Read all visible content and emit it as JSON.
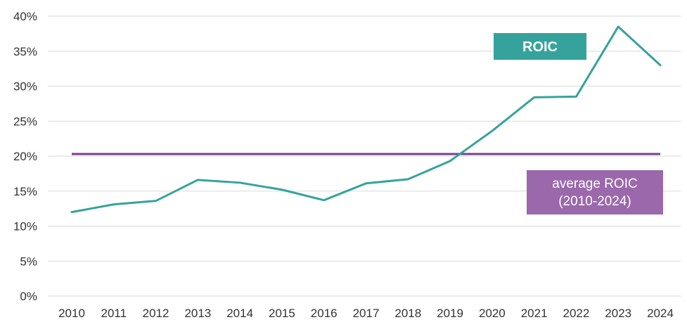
{
  "chart_data": {
    "type": "line",
    "title": "",
    "xlabel": "",
    "ylabel": "",
    "categories": [
      "2010",
      "2011",
      "2012",
      "2013",
      "2014",
      "2015",
      "2016",
      "2017",
      "2018",
      "2019",
      "2020",
      "2021",
      "2022",
      "2023",
      "2024"
    ],
    "series": [
      {
        "name": "ROIC",
        "color": "#35a39c",
        "values": [
          12.0,
          13.1,
          13.6,
          16.6,
          16.2,
          15.2,
          13.7,
          16.1,
          16.7,
          19.3,
          23.6,
          28.4,
          28.5,
          38.5,
          33.0
        ]
      },
      {
        "name": "average ROIC (2010-2024)",
        "label_lines": [
          "average ROIC",
          "(2010-2024)"
        ],
        "color": "#7b3f8e",
        "label_color": "#9a68ab",
        "value": 20.3
      }
    ],
    "yticks": [
      "0%",
      "5%",
      "10%",
      "15%",
      "20%",
      "25%",
      "30%",
      "35%",
      "40%"
    ],
    "ylim": [
      0,
      40
    ],
    "grid": true
  }
}
